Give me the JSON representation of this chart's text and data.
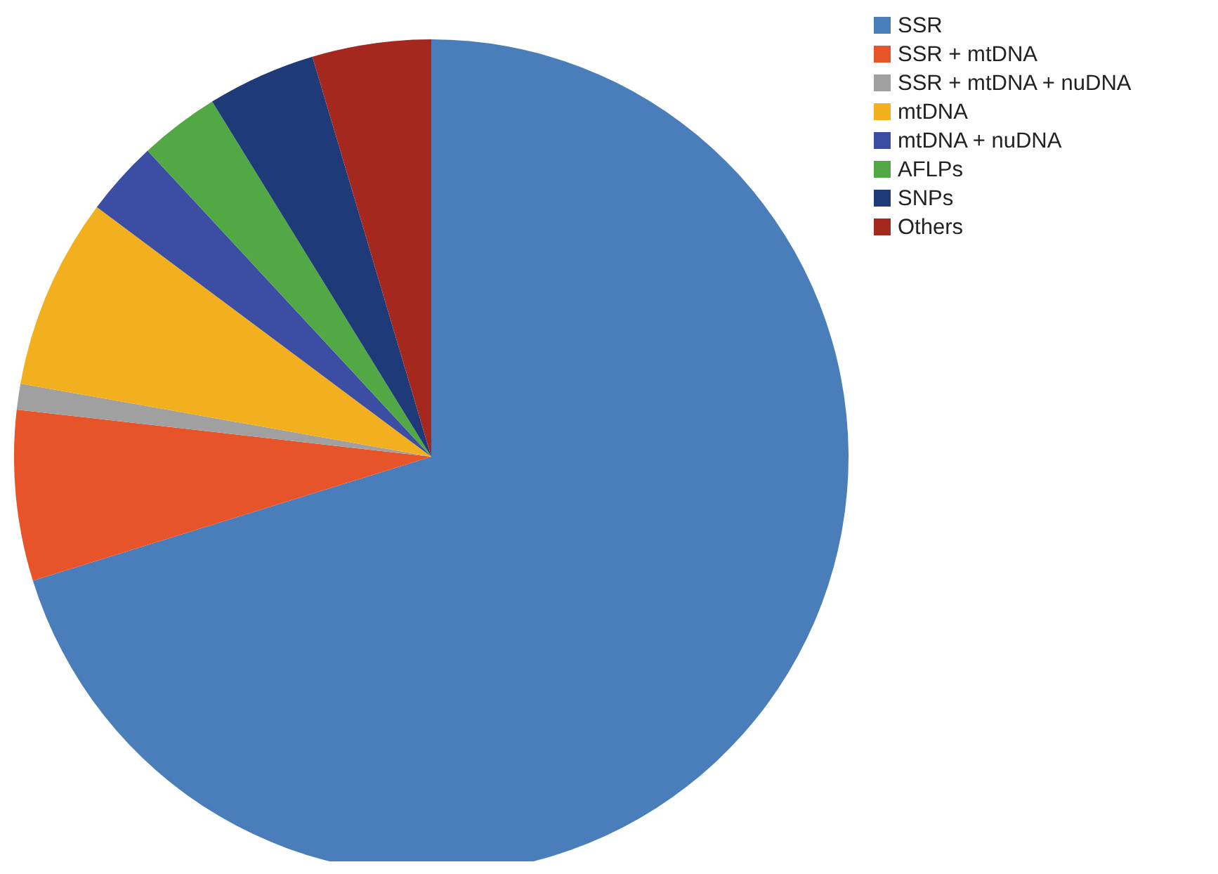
{
  "chart_data": {
    "type": "pie",
    "categories": [
      "SSR",
      "SSR + mtDNA",
      "SSR + mtDNA + nuDNA",
      "mtDNA",
      "mtDNA + nuDNA",
      "AFLPs",
      "SNPs",
      "Others"
    ],
    "values": [
      70.2,
      6.6,
      1,
      7.4,
      2.9,
      3.1,
      4.2,
      4.6
    ],
    "colors": [
      "#4a7ebb",
      "#e8542a",
      "#a0a0a0",
      "#f2b01e",
      "#3b4ea3",
      "#52a844",
      "#1f3a78",
      "#a5281e"
    ],
    "legend": "top right"
  }
}
